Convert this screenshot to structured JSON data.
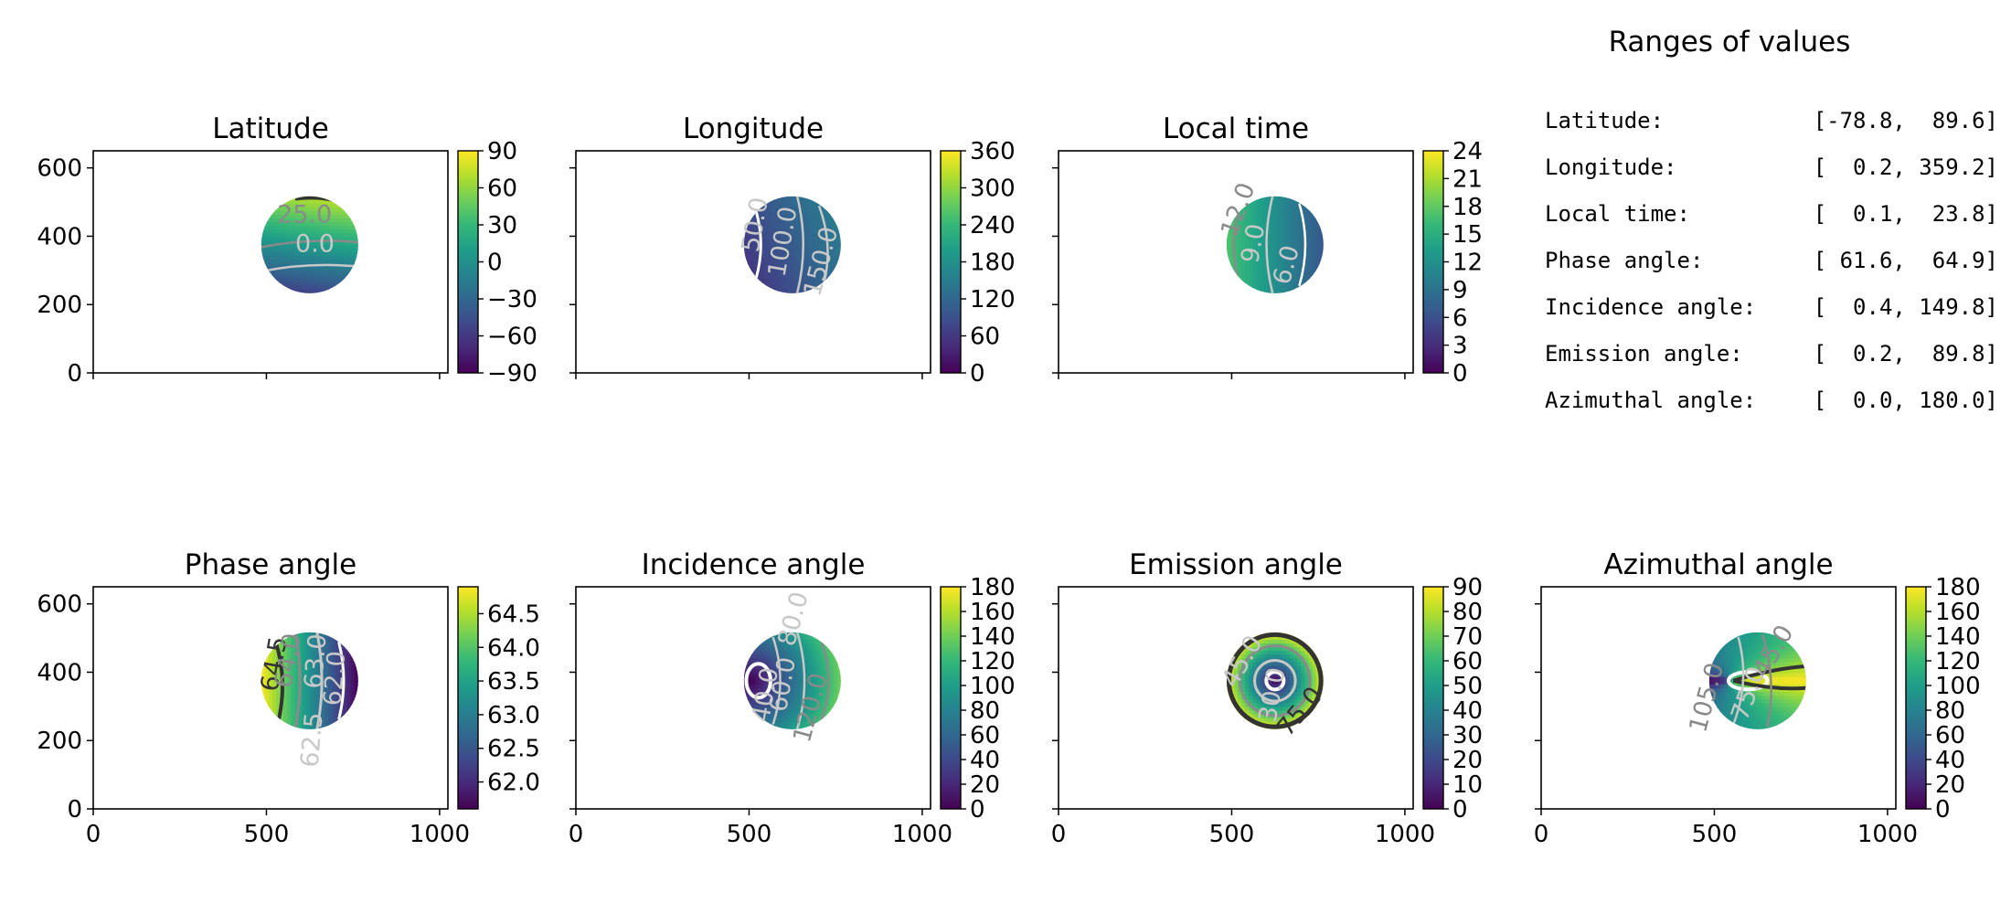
{
  "figure": {
    "ranges_title": "Ranges of values",
    "ranges": [
      {
        "label": "Latitude:",
        "value": "[-78.8,  89.6]"
      },
      {
        "label": "Longitude:",
        "value": "[  0.2, 359.2]"
      },
      {
        "label": "Local time:",
        "value": "[  0.1,  23.8]"
      },
      {
        "label": "Phase angle:",
        "value": "[ 61.6,  64.9]"
      },
      {
        "label": "Incidence angle:",
        "value": "[  0.4, 149.8]"
      },
      {
        "label": "Emission angle:",
        "value": "[  0.2,  89.8]"
      },
      {
        "label": "Azimuthal angle:",
        "value": "[  0.0, 180.0]"
      }
    ],
    "colormap": [
      "#440154",
      "#482878",
      "#3e4989",
      "#31688e",
      "#26828e",
      "#1f9e89",
      "#35b779",
      "#6ece58",
      "#b5de2b",
      "#fde725"
    ],
    "contour_colors": {
      "light": "#c8c8c8",
      "gray": "#8a8a8a",
      "dark": "#333333",
      "white": "#ffffff"
    }
  },
  "chart_data": [
    {
      "type": "heatmap",
      "title": "Latitude",
      "xlim": [
        0,
        1024
      ],
      "ylim": [
        0,
        650
      ],
      "x_ticks": [
        0,
        500,
        1000
      ],
      "y_ticks": [
        0,
        200,
        400,
        600
      ],
      "show_x_labels": false,
      "show_y_labels": true,
      "disk": {
        "center": [
          625,
          375
        ],
        "radius": 140
      },
      "cbar": {
        "min": -90,
        "max": 90,
        "ticks": [
          "90",
          "60",
          "30",
          "0",
          "−30",
          "−60",
          "−90"
        ],
        "tick_values": [
          90,
          60,
          30,
          0,
          -30,
          -60,
          -90
        ]
      },
      "field": {
        "kind": "lat",
        "min": -78.8,
        "max": 89.6
      },
      "contour_labels": [
        {
          "text": "25.0",
          "x": 610,
          "y": 440,
          "color": "gray",
          "rot": 0
        },
        {
          "text": "0.0",
          "x": 640,
          "y": 355,
          "color": "light",
          "rot": 0
        }
      ]
    },
    {
      "type": "heatmap",
      "title": "Longitude",
      "xlim": [
        0,
        1024
      ],
      "ylim": [
        0,
        650
      ],
      "x_ticks": [
        0,
        500,
        1000
      ],
      "y_ticks": [
        0,
        200,
        400,
        600
      ],
      "show_x_labels": false,
      "show_y_labels": false,
      "disk": {
        "center": [
          625,
          375
        ],
        "radius": 140
      },
      "cbar": {
        "min": 0,
        "max": 360,
        "ticks": [
          "360",
          "300",
          "240",
          "180",
          "120",
          "60",
          "0"
        ],
        "tick_values": [
          360,
          300,
          240,
          180,
          120,
          60,
          0
        ]
      },
      "field": {
        "kind": "lon",
        "min": 0.2,
        "max": 359.2
      },
      "contour_labels": [
        {
          "text": "50.0",
          "x": 540,
          "y": 430,
          "color": "light",
          "rot": -80
        },
        {
          "text": "100.0",
          "x": 620,
          "y": 380,
          "color": "light",
          "rot": -80
        },
        {
          "text": "150.0",
          "x": 730,
          "y": 320,
          "color": "light",
          "rot": -75
        }
      ]
    },
    {
      "type": "heatmap",
      "title": "Local time",
      "xlim": [
        0,
        1024
      ],
      "ylim": [
        0,
        650
      ],
      "x_ticks": [
        0,
        500,
        1000
      ],
      "y_ticks": [
        0,
        200,
        400,
        600
      ],
      "show_x_labels": false,
      "show_y_labels": false,
      "disk": {
        "center": [
          625,
          375
        ],
        "radius": 140
      },
      "cbar": {
        "min": 0,
        "max": 24,
        "ticks": [
          "24",
          "21",
          "18",
          "15",
          "12",
          "9",
          "6",
          "3",
          "0"
        ],
        "tick_values": [
          24,
          21,
          18,
          15,
          12,
          9,
          6,
          3,
          0
        ]
      },
      "field": {
        "kind": "lt",
        "min": 0.1,
        "max": 23.8
      },
      "contour_labels": [
        {
          "text": "12.0",
          "x": 540,
          "y": 470,
          "color": "gray",
          "rot": -70
        },
        {
          "text": "9.0",
          "x": 585,
          "y": 375,
          "color": "light",
          "rot": -80
        },
        {
          "text": "6.0",
          "x": 680,
          "y": 310,
          "color": "light",
          "rot": -75
        }
      ]
    },
    {
      "type": "heatmap",
      "title": "Phase angle",
      "xlim": [
        0,
        1024
      ],
      "ylim": [
        0,
        650
      ],
      "x_ticks": [
        0,
        500,
        1000
      ],
      "y_ticks": [
        0,
        200,
        400,
        600
      ],
      "show_x_labels": true,
      "show_y_labels": true,
      "disk": {
        "center": [
          625,
          375
        ],
        "radius": 140
      },
      "cbar": {
        "min": 61.6,
        "max": 64.9,
        "ticks": [
          "64.5",
          "64.0",
          "63.5",
          "63.0",
          "62.5",
          "62.0"
        ],
        "tick_values": [
          64.5,
          64.0,
          63.5,
          63.0,
          62.5,
          62.0
        ]
      },
      "field": {
        "kind": "phase",
        "min": 61.6,
        "max": 64.9
      },
      "contour_labels": [
        {
          "text": "64.5",
          "x": 545,
          "y": 420,
          "color": "dark",
          "rot": -80
        },
        {
          "text": "64.0",
          "x": 585,
          "y": 430,
          "color": "gray",
          "rot": -80
        },
        {
          "text": "63.0",
          "x": 665,
          "y": 430,
          "color": "light",
          "rot": -85
        },
        {
          "text": "62.5",
          "x": 655,
          "y": 200,
          "color": "light",
          "rot": -85
        },
        {
          "text": "62.0",
          "x": 720,
          "y": 380,
          "color": "light",
          "rot": -85
        }
      ]
    },
    {
      "type": "heatmap",
      "title": "Incidence angle",
      "xlim": [
        0,
        1024
      ],
      "ylim": [
        0,
        650
      ],
      "x_ticks": [
        0,
        500,
        1000
      ],
      "y_ticks": [
        0,
        200,
        400,
        600
      ],
      "show_x_labels": true,
      "show_y_labels": false,
      "disk": {
        "center": [
          625,
          375
        ],
        "radius": 140
      },
      "cbar": {
        "min": 0,
        "max": 180,
        "ticks": [
          "180",
          "160",
          "140",
          "120",
          "100",
          "80",
          "60",
          "40",
          "20",
          "0"
        ],
        "tick_values": [
          180,
          160,
          140,
          120,
          100,
          80,
          60,
          40,
          20,
          0
        ]
      },
      "field": {
        "kind": "inc",
        "min": 0.4,
        "max": 149.8
      },
      "contour_labels": [
        {
          "text": "80.0",
          "x": 650,
          "y": 550,
          "color": "light",
          "rot": -75
        },
        {
          "text": "40.0",
          "x": 570,
          "y": 330,
          "color": "light",
          "rot": -80
        },
        {
          "text": "60.0",
          "x": 620,
          "y": 360,
          "color": "light",
          "rot": -80
        },
        {
          "text": "120.0",
          "x": 700,
          "y": 290,
          "color": "gray",
          "rot": -75
        }
      ]
    },
    {
      "type": "heatmap",
      "title": "Emission angle",
      "xlim": [
        0,
        1024
      ],
      "ylim": [
        0,
        650
      ],
      "x_ticks": [
        0,
        500,
        1000
      ],
      "y_ticks": [
        0,
        200,
        400,
        600
      ],
      "show_x_labels": true,
      "show_y_labels": false,
      "disk": {
        "center": [
          625,
          375
        ],
        "radius": 140
      },
      "cbar": {
        "min": 0,
        "max": 90,
        "ticks": [
          "90",
          "80",
          "70",
          "60",
          "50",
          "40",
          "30",
          "20",
          "10",
          "0"
        ],
        "tick_values": [
          90,
          80,
          70,
          60,
          50,
          40,
          30,
          20,
          10,
          0
        ]
      },
      "field": {
        "kind": "emi",
        "min": 0.2,
        "max": 89.8
      },
      "contour_labels": [
        {
          "text": "45.0",
          "x": 550,
          "y": 420,
          "color": "light",
          "rot": -60
        },
        {
          "text": "30.0",
          "x": 640,
          "y": 330,
          "color": "light",
          "rot": -80
        },
        {
          "text": "75.0",
          "x": 715,
          "y": 270,
          "color": "dark",
          "rot": -50
        }
      ]
    },
    {
      "type": "heatmap",
      "title": "Azimuthal angle",
      "xlim": [
        0,
        1024
      ],
      "ylim": [
        0,
        650
      ],
      "x_ticks": [
        0,
        500,
        1000
      ],
      "y_ticks": [
        0,
        200,
        400,
        600
      ],
      "show_x_labels": true,
      "show_y_labels": false,
      "disk": {
        "center": [
          625,
          375
        ],
        "radius": 140
      },
      "cbar": {
        "min": 0,
        "max": 180,
        "ticks": [
          "180",
          "160",
          "140",
          "120",
          "100",
          "80",
          "60",
          "40",
          "20",
          "0"
        ],
        "tick_values": [
          180,
          160,
          140,
          120,
          100,
          80,
          60,
          40,
          20,
          0
        ]
      },
      "field": {
        "kind": "azi",
        "min": 0.0,
        "max": 180.0
      },
      "contour_labels": [
        {
          "text": "105.0",
          "x": 500,
          "y": 320,
          "color": "gray",
          "rot": -75
        },
        {
          "text": "75.0",
          "x": 620,
          "y": 330,
          "color": "light",
          "rot": -70
        },
        {
          "text": "45.0",
          "x": 690,
          "y": 450,
          "color": "gray",
          "rot": -60
        }
      ]
    }
  ]
}
